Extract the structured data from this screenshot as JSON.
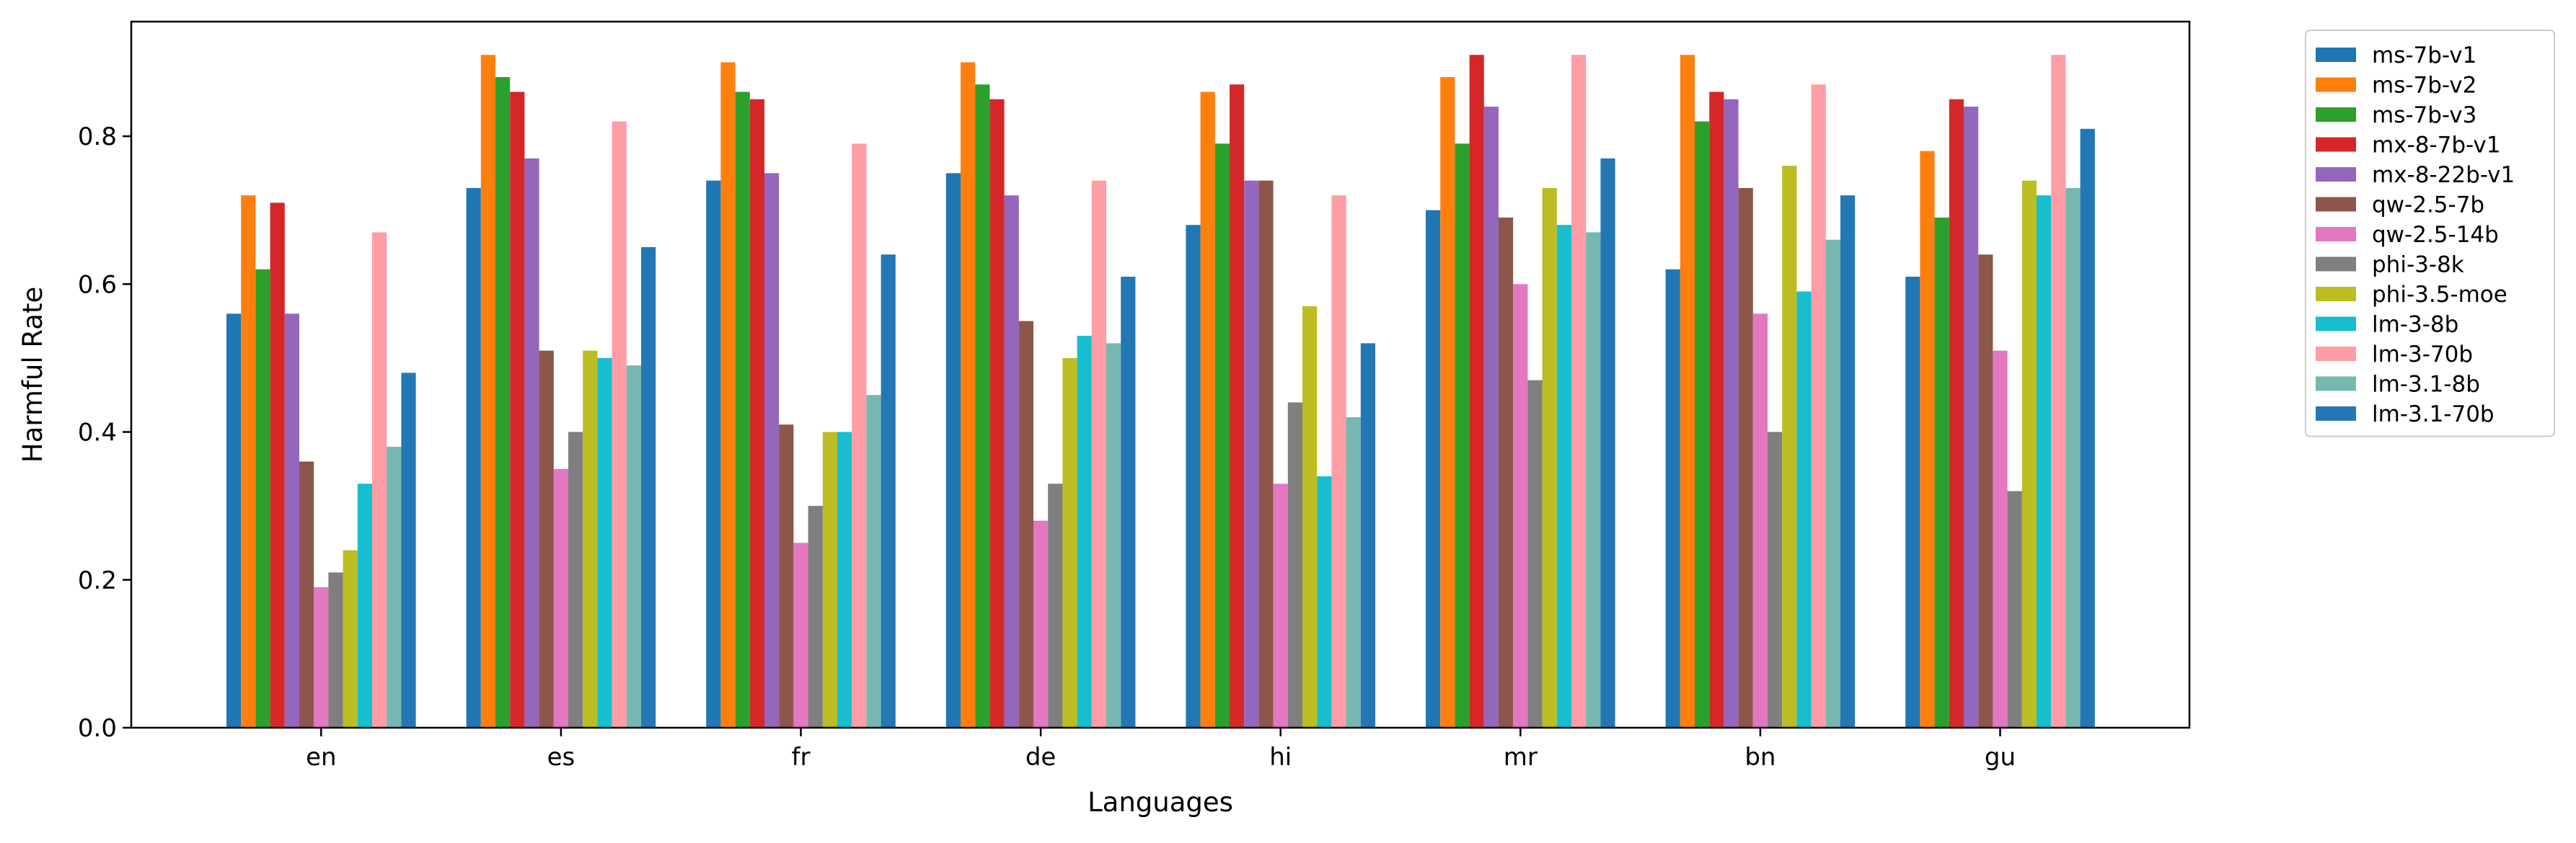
{
  "chart_data": {
    "type": "bar",
    "xlabel": "Languages",
    "ylabel": "Harmful Rate",
    "ylim": [
      0,
      0.955
    ],
    "yticks": [
      0.0,
      0.2,
      0.4,
      0.6,
      0.8
    ],
    "ytick_labels": [
      "0.0",
      "0.2",
      "0.4",
      "0.6",
      "0.8"
    ],
    "grid": false,
    "legend_position": "outside-right",
    "categories": [
      "en",
      "es",
      "fr",
      "de",
      "hi",
      "mr",
      "bn",
      "gu"
    ],
    "series": [
      {
        "name": "ms-7b-v1",
        "color": "#1f77b4",
        "values": [
          0.56,
          0.73,
          0.74,
          0.75,
          0.68,
          0.7,
          0.62,
          0.61
        ]
      },
      {
        "name": "ms-7b-v2",
        "color": "#ff7f0e",
        "values": [
          0.72,
          0.91,
          0.9,
          0.9,
          0.86,
          0.88,
          0.91,
          0.78
        ]
      },
      {
        "name": "ms-7b-v3",
        "color": "#2ca02c",
        "values": [
          0.62,
          0.88,
          0.86,
          0.87,
          0.79,
          0.79,
          0.82,
          0.69
        ]
      },
      {
        "name": "mx-8-7b-v1",
        "color": "#d62728",
        "values": [
          0.71,
          0.86,
          0.85,
          0.85,
          0.87,
          0.91,
          0.86,
          0.85
        ]
      },
      {
        "name": "mx-8-22b-v1",
        "color": "#9467bd",
        "values": [
          0.56,
          0.77,
          0.75,
          0.72,
          0.74,
          0.84,
          0.85,
          0.84
        ]
      },
      {
        "name": "qw-2.5-7b",
        "color": "#8c564b",
        "values": [
          0.36,
          0.51,
          0.41,
          0.55,
          0.74,
          0.69,
          0.73,
          0.64
        ]
      },
      {
        "name": "qw-2.5-14b",
        "color": "#e377c2",
        "values": [
          0.19,
          0.35,
          0.25,
          0.28,
          0.33,
          0.6,
          0.56,
          0.51
        ]
      },
      {
        "name": "phi-3-8k",
        "color": "#7f7f7f",
        "values": [
          0.21,
          0.4,
          0.3,
          0.33,
          0.44,
          0.47,
          0.4,
          0.32
        ]
      },
      {
        "name": "phi-3.5-moe",
        "color": "#bcbd22",
        "values": [
          0.24,
          0.51,
          0.4,
          0.5,
          0.57,
          0.73,
          0.76,
          0.74
        ]
      },
      {
        "name": "lm-3-8b",
        "color": "#17becf",
        "values": [
          0.33,
          0.5,
          0.4,
          0.53,
          0.34,
          0.68,
          0.59,
          0.72
        ]
      },
      {
        "name": "lm-3-70b",
        "color": "#ff9da7",
        "values": [
          0.67,
          0.82,
          0.79,
          0.74,
          0.72,
          0.91,
          0.87,
          0.91
        ]
      },
      {
        "name": "lm-3.1-8b",
        "color": "#76b7b2",
        "values": [
          0.38,
          0.49,
          0.45,
          0.52,
          0.42,
          0.67,
          0.66,
          0.73
        ]
      },
      {
        "name": "lm-3.1-70b",
        "color": "#2377b4",
        "values": [
          0.48,
          0.65,
          0.64,
          0.61,
          0.52,
          0.77,
          0.72,
          0.81
        ]
      }
    ]
  }
}
